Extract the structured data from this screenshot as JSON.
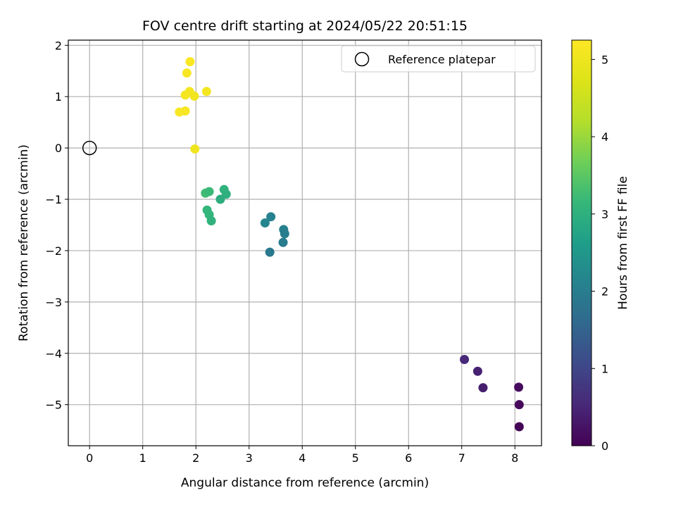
{
  "chart_data": {
    "type": "scatter",
    "title": "FOV centre drift starting at 2024/05/22 20:51:15",
    "xlabel": "Angular distance from reference (arcmin)",
    "ylabel": "Rotation from reference (arcmin)",
    "xlim": [
      -0.4,
      8.5
    ],
    "ylim": [
      -5.8,
      2.1
    ],
    "xticks": [
      "0",
      "1",
      "2",
      "3",
      "4",
      "5",
      "6",
      "7",
      "8"
    ],
    "yticks": [
      "2",
      "1",
      "0",
      "−1",
      "−2",
      "−3",
      "−4",
      "−5"
    ],
    "grid": true,
    "legend": {
      "placement": "top-right",
      "entries": [
        "Reference platepar"
      ]
    },
    "reference_point": {
      "x": 0,
      "y": 0
    },
    "colorbar": {
      "label": "Hours from first FF file",
      "colormap": "viridis",
      "range": [
        0,
        5.25
      ],
      "ticks": [
        "0",
        "1",
        "2",
        "3",
        "4",
        "5"
      ]
    },
    "points": [
      {
        "x": 7.05,
        "y": -4.12,
        "c": 0.55
      },
      {
        "x": 7.3,
        "y": -4.35,
        "c": 0.45
      },
      {
        "x": 7.4,
        "y": -4.67,
        "c": 0.4
      },
      {
        "x": 8.07,
        "y": -4.66,
        "c": 0.15
      },
      {
        "x": 8.08,
        "y": -5.0,
        "c": 0.1
      },
      {
        "x": 8.08,
        "y": -5.43,
        "c": 0.05
      },
      {
        "x": 3.3,
        "y": -1.46,
        "c": 2.15
      },
      {
        "x": 3.41,
        "y": -1.34,
        "c": 2.1
      },
      {
        "x": 3.65,
        "y": -1.59,
        "c": 2.05
      },
      {
        "x": 3.67,
        "y": -1.67,
        "c": 2.0
      },
      {
        "x": 3.64,
        "y": -1.84,
        "c": 1.95
      },
      {
        "x": 3.39,
        "y": -2.03,
        "c": 1.9
      },
      {
        "x": 2.53,
        "y": -0.81,
        "c": 3.05
      },
      {
        "x": 2.57,
        "y": -0.9,
        "c": 3.0
      },
      {
        "x": 2.46,
        "y": -1.0,
        "c": 2.95
      },
      {
        "x": 2.18,
        "y": -0.88,
        "c": 3.25
      },
      {
        "x": 2.25,
        "y": -0.85,
        "c": 3.2
      },
      {
        "x": 2.21,
        "y": -1.21,
        "c": 3.1
      },
      {
        "x": 2.25,
        "y": -1.3,
        "c": 3.1
      },
      {
        "x": 2.29,
        "y": -1.42,
        "c": 3.05
      },
      {
        "x": 1.89,
        "y": 1.68,
        "c": 5.2
      },
      {
        "x": 1.83,
        "y": 1.46,
        "c": 5.15
      },
      {
        "x": 1.88,
        "y": 1.1,
        "c": 5.1
      },
      {
        "x": 1.8,
        "y": 1.03,
        "c": 5.1
      },
      {
        "x": 1.97,
        "y": 1.01,
        "c": 5.05
      },
      {
        "x": 2.2,
        "y": 1.1,
        "c": 5.1
      },
      {
        "x": 1.69,
        "y": 0.7,
        "c": 5.2
      },
      {
        "x": 1.8,
        "y": 0.72,
        "c": 5.15
      },
      {
        "x": 1.98,
        "y": -0.02,
        "c": 5.0
      }
    ]
  }
}
